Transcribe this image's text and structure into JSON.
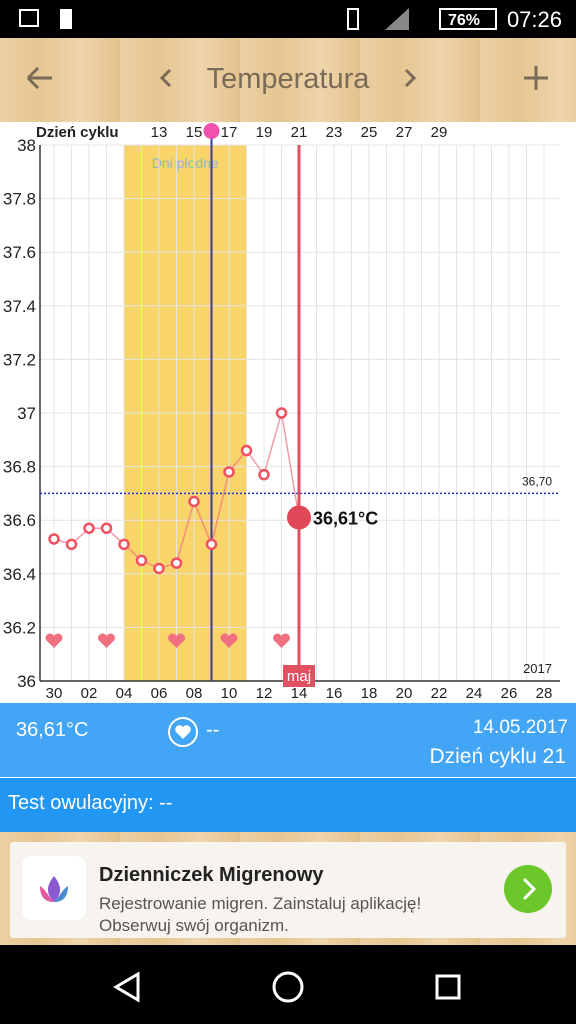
{
  "status_bar": {
    "battery": "76%",
    "time": "07:26"
  },
  "toolbar": {
    "title": "Temperatura"
  },
  "chart_data": {
    "type": "line",
    "cycle_title": "Dzień cyklu",
    "cycle_categories": [
      null,
      null,
      null,
      null,
      null,
      null,
      "13",
      null,
      "15",
      null,
      "17",
      null,
      "19",
      null,
      "21",
      null,
      "23",
      null,
      "25",
      null,
      "27",
      null,
      "29",
      null,
      null,
      null,
      null,
      null,
      null
    ],
    "categories": [
      "30",
      null,
      "02",
      null,
      "04",
      null,
      "06",
      null,
      "08",
      null,
      "10",
      null,
      "12",
      null,
      "14",
      null,
      "16",
      null,
      "18",
      null,
      "20",
      null,
      "22",
      null,
      "24",
      null,
      "26",
      null,
      "28"
    ],
    "series": [
      {
        "name": "Temperatura",
        "color": "#f07080",
        "values": [
          36.53,
          36.51,
          36.57,
          36.57,
          36.51,
          36.45,
          36.42,
          36.44,
          36.67,
          36.51,
          36.78,
          36.86,
          36.77,
          37.0,
          36.61,
          null,
          null,
          null,
          null,
          null,
          null,
          null,
          null,
          null,
          null,
          null,
          null,
          null,
          null
        ],
        "value_labels": [
          null,
          null,
          null,
          null,
          null,
          null,
          null,
          null,
          null,
          null,
          null,
          null,
          null,
          null,
          "36,61°C",
          null,
          null,
          null,
          null,
          null,
          null,
          null,
          null,
          null,
          null,
          null,
          null,
          null,
          null
        ]
      }
    ],
    "ylim": [
      36,
      38
    ],
    "yticks": [
      36,
      36.2,
      36.4,
      36.6,
      36.8,
      37,
      37.2,
      37.4,
      37.6,
      37.8,
      38
    ],
    "grid": true,
    "reference_line": {
      "value": 36.7,
      "label": "36,70"
    },
    "fertile": {
      "label": "Dni płodne",
      "days": [
        4,
        11
      ]
    },
    "ovulation_day": 9,
    "today_day": 14,
    "month_label": "maj",
    "year_label": "2017",
    "heart_days": [
      0,
      3,
      7,
      10,
      13
    ]
  },
  "info": {
    "temperature": "36,61°C",
    "intercourse": "--",
    "date": "14.05.2017",
    "cycle_day": "Dzień cyklu 21",
    "test": "Test owulacyjny: --"
  },
  "ad": {
    "title": "Dzienniczek Migrenowy",
    "line1": "Rejestrowanie migren. Zainstaluj aplikację!",
    "line2": "Obserwuj swój organizm."
  }
}
